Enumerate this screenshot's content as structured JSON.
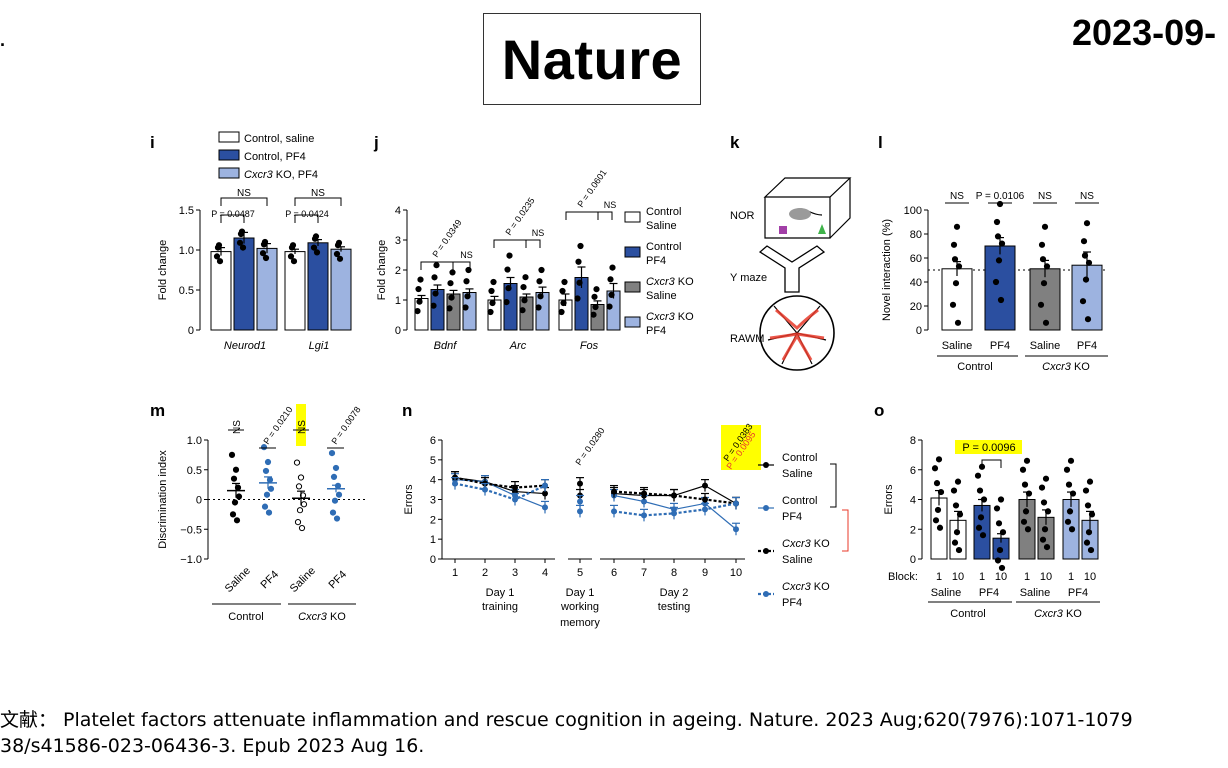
{
  "header": {
    "journal": "Nature",
    "date": "2023-09-",
    "edge_mark": "."
  },
  "reference": {
    "line1": "文献： Platelet factors attenuate inflammation and rescue cognition in ageing. Nature. 2023 Aug;620(7976):1071-1079",
    "line2": "38/s41586-023-06436-3. Epub 2023 Aug 16."
  },
  "panels": {
    "i": {
      "letter": "i",
      "legend": [
        {
          "pre": "Control, saline",
          "italic": "",
          "post": ""
        },
        {
          "pre": "Control, PF4",
          "italic": "",
          "post": ""
        },
        {
          "pre": "",
          "italic": "Cxcr3",
          "post": " KO, PF4"
        }
      ]
    },
    "j": {
      "letter": "j",
      "legend": [
        {
          "l1pre": "Control",
          "l1it": "",
          "l2": "Saline"
        },
        {
          "l1pre": "Control",
          "l1it": "",
          "l2": "PF4"
        },
        {
          "l1pre": " KO",
          "l1it": "Cxcr3",
          "l2": "Saline"
        },
        {
          "l1pre": " KO",
          "l1it": "Cxcr3",
          "l2": "PF4"
        }
      ]
    },
    "k": {
      "letter": "k",
      "nor": "NOR",
      "ymaze": "Y maze",
      "rawm": "RAWM"
    },
    "l": {
      "letter": "l",
      "group_control": "Control",
      "group_ko_it": "Cxcr3",
      "group_ko": " KO"
    },
    "m": {
      "letter": "m",
      "group_control": "Control",
      "group_ko_it": "Cxcr3",
      "group_ko": " KO"
    },
    "n": {
      "letter": "n",
      "xgroups": [
        {
          "l1": "Day 1",
          "l2": "training",
          "l3": ""
        },
        {
          "l1": "Day 1",
          "l2": "working",
          "l3": "memory"
        },
        {
          "l1": "Day 2",
          "l2": "testing",
          "l3": ""
        }
      ],
      "pvalue_break": "P = 0.0280",
      "legend": [
        {
          "l1it": "",
          "l1": "Control",
          "l2": "Saline"
        },
        {
          "l1it": "",
          "l1": "Control",
          "l2": "PF4"
        },
        {
          "l1it": "Cxcr3",
          "l1": " KO",
          "l2": "Saline"
        },
        {
          "l1it": "Cxcr3",
          "l1": " KO",
          "l2": "PF4"
        }
      ]
    },
    "o": {
      "letter": "o",
      "block_label": "Block:",
      "group_control": "Control",
      "group_ko_it": "Cxcr3",
      "group_ko": " KO"
    }
  },
  "colors": {
    "white_bar": "#ffffff",
    "control_pf4": "#2b4fa0",
    "ko_saline": "#808080",
    "ko_pf4": "#9db3e0",
    "highlight": "#ffff00",
    "blue_marker": "#2f6db5",
    "red": "#e8392a"
  },
  "chart_data": [
    {
      "panel": "i",
      "type": "bar",
      "categories": [
        "Neurod1",
        "Lgi1"
      ],
      "series": [
        {
          "name": "Control, saline",
          "values": [
            0.98,
            0.98
          ],
          "errors": [
            0.05,
            0.03
          ]
        },
        {
          "name": "Control, PF4",
          "values": [
            1.15,
            1.09
          ],
          "errors": [
            0.07,
            0.04
          ]
        },
        {
          "name": "Cxcr3 KO, PF4",
          "values": [
            1.02,
            1.01
          ],
          "errors": [
            0.06,
            0.03
          ]
        }
      ],
      "ylabel": "Fold change",
      "ylim": [
        0,
        1.5
      ],
      "yticks": [
        "0",
        "0.5",
        "1.0",
        "1.5"
      ],
      "annotations": [
        "NS",
        "P = 0.0487",
        "NS",
        "P = 0.0424"
      ]
    },
    {
      "panel": "j",
      "type": "bar",
      "categories": [
        "Bdnf",
        "Arc",
        "Fos"
      ],
      "series": [
        {
          "name": "Control Saline",
          "values": [
            1.05,
            1.0,
            1.0
          ],
          "errors": [
            0.1,
            0.12,
            0.2
          ]
        },
        {
          "name": "Control PF4",
          "values": [
            1.35,
            1.55,
            1.75
          ],
          "errors": [
            0.15,
            0.2,
            0.35
          ]
        },
        {
          "name": "Cxcr3 KO Saline",
          "values": [
            1.2,
            1.1,
            0.85
          ],
          "errors": [
            0.12,
            0.1,
            0.12
          ]
        },
        {
          "name": "Cxcr3 KO PF4",
          "values": [
            1.25,
            1.25,
            1.3
          ],
          "errors": [
            0.12,
            0.18,
            0.25
          ]
        }
      ],
      "ylabel": "Fold change",
      "ylim": [
        0,
        4
      ],
      "yticks": [
        "0",
        "1",
        "2",
        "3",
        "4"
      ],
      "annotations": [
        "P = 0.0349",
        "NS",
        "P = 0.0235",
        "NS",
        "P = 0.0601",
        "NS"
      ]
    },
    {
      "panel": "l",
      "type": "bar",
      "categories": [
        "Saline",
        "PF4",
        "Saline",
        "PF4"
      ],
      "values": [
        51,
        70,
        51,
        54
      ],
      "errors": [
        6,
        7,
        7,
        11
      ],
      "ylabel": "Novel interaction (%)",
      "ylim": [
        0,
        100
      ],
      "yticks": [
        "0",
        "20",
        "40",
        "60",
        "80",
        "100"
      ],
      "reference_line": 50,
      "annotations": [
        "NS",
        "P = 0.0106",
        "NS",
        "NS"
      ]
    },
    {
      "panel": "m",
      "type": "scatter",
      "categories": [
        "Saline",
        "PF4",
        "Saline",
        "PF4"
      ],
      "means": [
        0.15,
        0.28,
        0.02,
        0.18
      ],
      "errors": [
        0.12,
        0.1,
        0.12,
        0.06
      ],
      "ylabel": "Discrimination index",
      "ylim": [
        -1.0,
        1.0
      ],
      "yticks": [
        "−1.0",
        "−0.5",
        "0",
        "0.5",
        "1.0"
      ],
      "annotations": [
        "NS",
        "P = 0.0210",
        "NS",
        "P = 0.0078"
      ]
    },
    {
      "panel": "n",
      "type": "line",
      "x": [
        "1",
        "2",
        "3",
        "4",
        "5",
        "6",
        "7",
        "8",
        "9",
        "10"
      ],
      "series": [
        {
          "name": "Control Saline",
          "values": [
            4.1,
            3.9,
            3.4,
            3.3,
            3.8,
            3.3,
            3.2,
            3.2,
            3.7,
            2.8
          ]
        },
        {
          "name": "Control PF4",
          "values": [
            4.0,
            3.9,
            3.2,
            2.6,
            2.4,
            3.2,
            2.9,
            2.5,
            2.8,
            1.5
          ]
        },
        {
          "name": "Cxcr3 KO Saline",
          "values": [
            4.1,
            3.8,
            3.6,
            3.7,
            3.2,
            3.4,
            3.3,
            3.2,
            3.0,
            2.8
          ]
        },
        {
          "name": "Cxcr3 KO PF4",
          "values": [
            3.8,
            3.5,
            3.0,
            3.7,
            2.9,
            2.4,
            2.2,
            2.3,
            2.5,
            2.8
          ]
        }
      ],
      "ylabel": "Errors",
      "ylim": [
        0,
        6
      ],
      "yticks": [
        "0",
        "1",
        "2",
        "3",
        "4",
        "5",
        "6"
      ],
      "annotations": [
        "P = 0.0383",
        "P = 0.0095",
        "P = 0.0280"
      ]
    },
    {
      "panel": "o",
      "type": "bar",
      "categories": [
        "1",
        "10",
        "1",
        "10",
        "1",
        "10",
        "1",
        "10"
      ],
      "groups": [
        "Saline",
        "PF4",
        "Saline",
        "PF4"
      ],
      "values": [
        4.1,
        2.6,
        3.6,
        1.4,
        4.0,
        2.8,
        4.0,
        2.6
      ],
      "errors": [
        0.5,
        0.6,
        0.4,
        0.3,
        0.5,
        0.5,
        0.5,
        0.6
      ],
      "ylabel": "Errors",
      "ylim": [
        0,
        8
      ],
      "yticks": [
        "0",
        "2",
        "4",
        "6",
        "8"
      ],
      "annotations": [
        "P = 0.0096"
      ]
    }
  ]
}
